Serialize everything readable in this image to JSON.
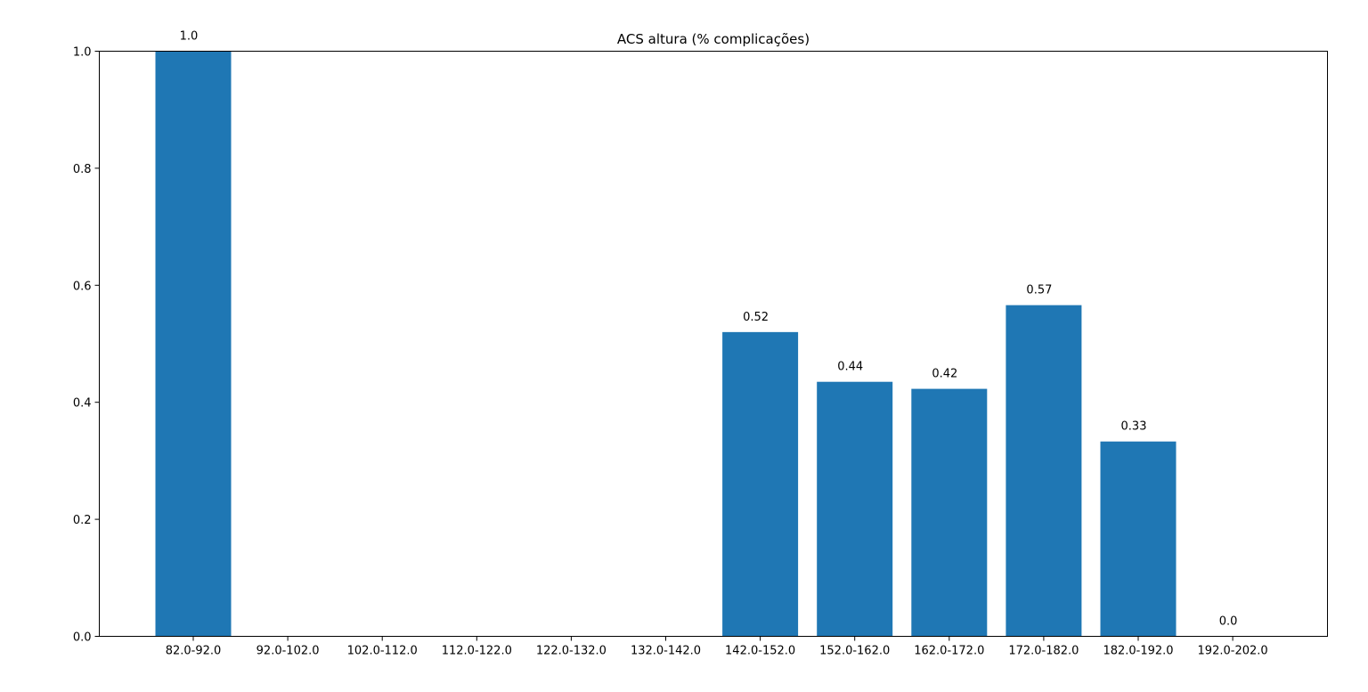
{
  "chart_data": {
    "type": "bar",
    "title": "ACS altura (% complicações)",
    "xlabel": "",
    "ylabel": "",
    "categories": [
      "82.0-92.0",
      "92.0-102.0",
      "102.0-112.0",
      "112.0-122.0",
      "122.0-132.0",
      "132.0-142.0",
      "142.0-152.0",
      "152.0-162.0",
      "162.0-172.0",
      "172.0-182.0",
      "182.0-192.0",
      "192.0-202.0"
    ],
    "values": [
      1.0,
      null,
      null,
      null,
      null,
      null,
      0.52,
      0.435,
      0.423,
      0.566,
      0.333,
      0.0
    ],
    "data_labels": [
      "1.0",
      "",
      "",
      "",
      "",
      "",
      "0.52",
      "0.44",
      "0.42",
      "0.57",
      "0.33",
      "0.0"
    ],
    "ylim": [
      0,
      1.0
    ],
    "yticks": [
      "0.0",
      "0.2",
      "0.4",
      "0.6",
      "0.8",
      "1.0"
    ],
    "grid": false,
    "bar_color": "#1f77b4"
  }
}
